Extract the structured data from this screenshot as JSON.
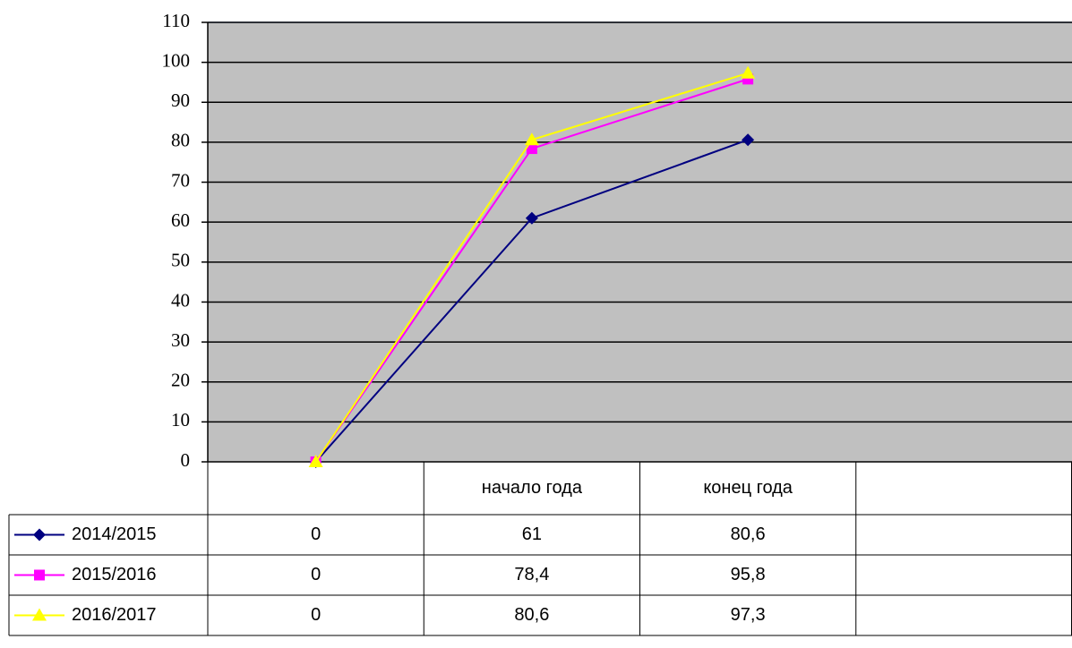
{
  "chart_data": {
    "type": "line",
    "categories": [
      null,
      "начало года",
      "конец года",
      null
    ],
    "series": [
      {
        "name": "2014/2015",
        "color": "#000080",
        "marker": "diamond",
        "values": [
          0,
          61,
          80.6,
          null
        ],
        "value_labels": [
          "0",
          "61",
          "80,6",
          null
        ]
      },
      {
        "name": "2015/2016",
        "color": "#ff00ff",
        "marker": "square",
        "values": [
          0,
          78.4,
          95.8,
          null
        ],
        "value_labels": [
          "0",
          "78,4",
          "95,8",
          null
        ]
      },
      {
        "name": "2016/2017",
        "color": "#ffff00",
        "marker": "triangle",
        "values": [
          0,
          80.6,
          97.3,
          null
        ],
        "value_labels": [
          "0",
          "80,6",
          "97,3",
          null
        ]
      }
    ],
    "ylim": [
      0,
      110
    ],
    "yticks": [
      0,
      10,
      20,
      30,
      40,
      50,
      60,
      70,
      80,
      90,
      100,
      110
    ],
    "grid": true,
    "plot_background": "#c0c0c0",
    "data_table": true
  }
}
